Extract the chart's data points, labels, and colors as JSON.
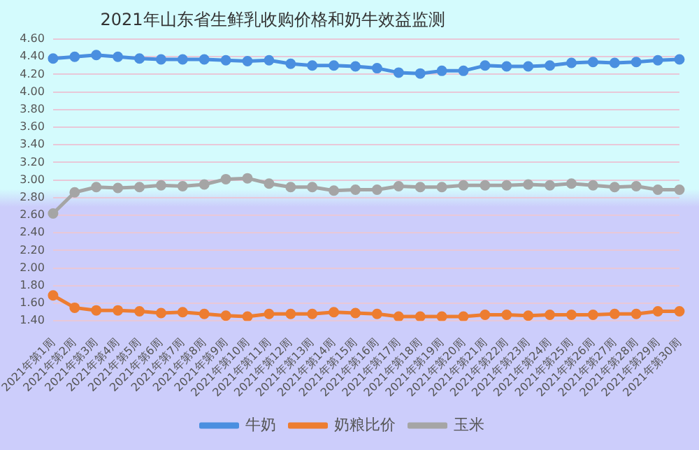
{
  "chart_data": {
    "type": "line",
    "title": "2021年山东省生鲜乳收购价格和奶牛效益监测",
    "categories": [
      "2021年第1周",
      "2021年第2周",
      "2021年第3周",
      "2021年第4周",
      "2021年第5周",
      "2021年第6周",
      "2021年第7周",
      "2021年第8周",
      "2021年第9周",
      "2021年第10周",
      "2021年第11周",
      "2021年第12周",
      "2021年第13周",
      "2021年第14周",
      "2021年第15周",
      "2021年第16周",
      "2021年第17周",
      "2021年第18周",
      "2021年第19周",
      "2021年第20周",
      "2021年第21周",
      "2021年第22周",
      "2021年第23周",
      "2021年第24周",
      "2021年第25周",
      "2021年第26周",
      "2021年第27周",
      "2021年第28周",
      "2021年第29周",
      "2021年第30周"
    ],
    "series": [
      {
        "name": "牛奶",
        "color": "#4a8fe0",
        "values": [
          4.38,
          4.4,
          4.42,
          4.4,
          4.38,
          4.37,
          4.37,
          4.37,
          4.36,
          4.35,
          4.36,
          4.32,
          4.3,
          4.3,
          4.29,
          4.27,
          4.22,
          4.21,
          4.24,
          4.24,
          4.3,
          4.29,
          4.29,
          4.3,
          4.33,
          4.34,
          4.33,
          4.34,
          4.36,
          4.37
        ]
      },
      {
        "name": "奶粮比价",
        "color": "#ed7d31",
        "values": [
          1.69,
          1.55,
          1.52,
          1.52,
          1.51,
          1.49,
          1.5,
          1.48,
          1.46,
          1.45,
          1.48,
          1.48,
          1.48,
          1.5,
          1.49,
          1.48,
          1.45,
          1.45,
          1.45,
          1.45,
          1.47,
          1.47,
          1.46,
          1.47,
          1.47,
          1.47,
          1.48,
          1.48,
          1.51,
          1.51
        ]
      },
      {
        "name": "玉米",
        "color": "#a5a5a5",
        "values": [
          2.62,
          2.86,
          2.92,
          2.91,
          2.92,
          2.94,
          2.93,
          2.95,
          3.01,
          3.02,
          2.96,
          2.92,
          2.92,
          2.88,
          2.89,
          2.89,
          2.93,
          2.92,
          2.92,
          2.94,
          2.94,
          2.94,
          2.95,
          2.94,
          2.96,
          2.94,
          2.92,
          2.93,
          2.89,
          2.89
        ]
      }
    ],
    "ylim": [
      1.4,
      4.6
    ],
    "yticks": [
      {
        "value": 1.4,
        "label": "1.40"
      },
      {
        "value": 1.6,
        "label": "1.60"
      },
      {
        "value": 1.8,
        "label": "1.80"
      },
      {
        "value": 2.0,
        "label": "2.00"
      },
      {
        "value": 2.2,
        "label": "2.20"
      },
      {
        "value": 2.4,
        "label": "2.40"
      },
      {
        "value": 2.6,
        "label": "2.60"
      },
      {
        "value": 2.8,
        "label": "2.80"
      },
      {
        "value": 3.0,
        "label": "3.00"
      },
      {
        "value": 3.2,
        "label": "3.20"
      },
      {
        "value": 3.4,
        "label": "3.40"
      },
      {
        "value": 3.6,
        "label": "3.60"
      },
      {
        "value": 3.8,
        "label": "3.80"
      },
      {
        "value": 4.0,
        "label": "4.00"
      },
      {
        "value": 4.2,
        "label": "4.20"
      },
      {
        "value": 4.4,
        "label": "4.40"
      },
      {
        "value": 4.6,
        "label": "4.60"
      }
    ],
    "grid": "y",
    "legend": "bottom",
    "marker": "circle",
    "line_style": "solid"
  }
}
